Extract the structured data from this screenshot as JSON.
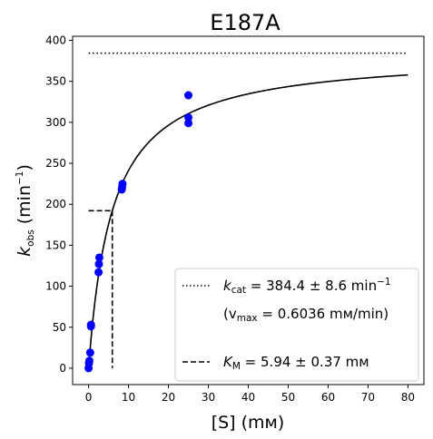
{
  "chart_data": {
    "type": "scatter",
    "title": "E187A",
    "xlabel": {
      "text": "[S] (mᴍ)"
    },
    "ylabel": {
      "main": "k",
      "sub": "obs",
      "unit_prefix": " (min",
      "unit_sup": "−1",
      "unit_suffix": ")"
    },
    "xlim": [
      -4,
      84
    ],
    "ylim": [
      -20,
      405
    ],
    "x_ticks": [
      0,
      10,
      20,
      30,
      40,
      50,
      60,
      70,
      80
    ],
    "y_ticks": [
      0,
      50,
      100,
      150,
      200,
      250,
      300,
      350,
      400
    ],
    "x_tick_labels": [
      "0",
      "10",
      "20",
      "30",
      "40",
      "50",
      "60",
      "70",
      "80"
    ],
    "y_tick_labels": [
      "0",
      "50",
      "100",
      "150",
      "200",
      "250",
      "300",
      "350",
      "400"
    ],
    "grid": false,
    "legend_placement": "lower-right",
    "colors": {
      "points": "#0000ff",
      "fit": "#000000",
      "reference": "#000000"
    },
    "series": [
      {
        "kind": "points",
        "x": [
          0,
          0.1,
          0.2,
          0.4,
          0.6,
          0.6,
          2.5,
          2.6,
          2.7,
          8.3,
          8.4,
          8.5,
          25,
          25,
          25
        ],
        "y": [
          0,
          6,
          9,
          19,
          51,
          53,
          117,
          127,
          135,
          218,
          221,
          225,
          299,
          306,
          333
        ]
      },
      {
        "kind": "fit-curve",
        "model": "michaelis-menten",
        "vmax": 384.4,
        "km": 5.94,
        "x_range": [
          0,
          80
        ]
      },
      {
        "kind": "kcat-reference",
        "style": "dotted",
        "y": 384.4,
        "x_range": [
          0,
          80
        ]
      },
      {
        "kind": "km-reference",
        "style": "dashed",
        "x": 5.94,
        "y": 192.2,
        "h_x_range": [
          0,
          5.94
        ]
      }
    ],
    "legend": {
      "kcat": {
        "main": "k",
        "sub": "cat",
        "text": " = 384.4 ± 8.6 min",
        "sup": "−1"
      },
      "vmax": {
        "pre": "(v",
        "sub": "max",
        "text": " = 0.6036 mᴍ/min)"
      },
      "km": {
        "main": "K",
        "sub": "M",
        "text": " = 5.94 ± 0.37 mᴍ"
      }
    }
  }
}
